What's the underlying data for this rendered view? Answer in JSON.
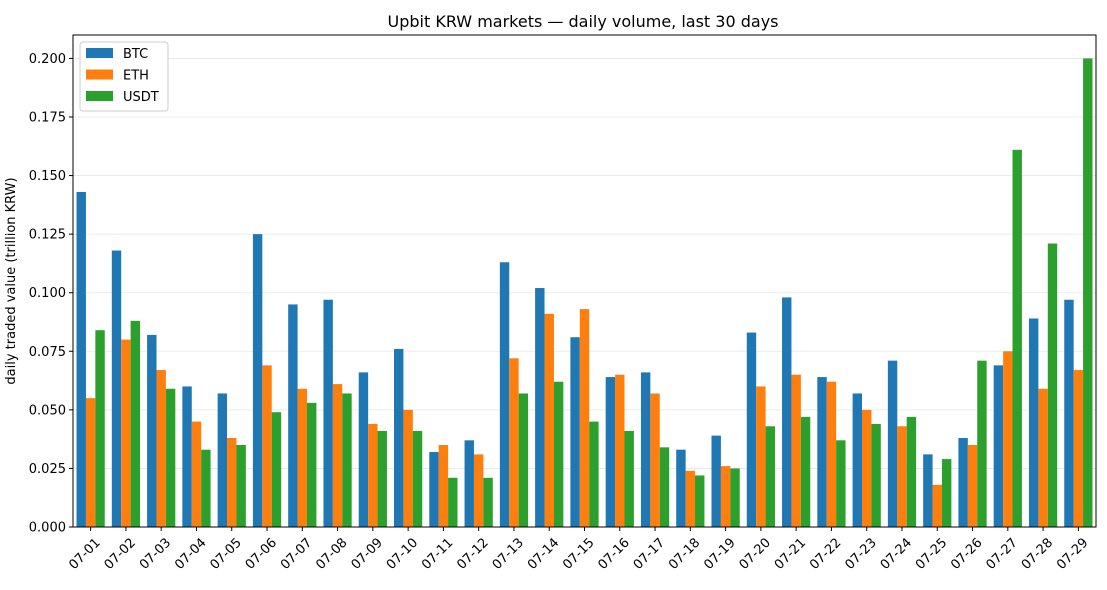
{
  "chart_data": {
    "type": "bar",
    "title": "Upbit KRW markets — daily volume, last 30 days",
    "xlabel": "",
    "ylabel": "daily traded value (trillion KRW)",
    "ylim": [
      0,
      0.21
    ],
    "yticks": [
      "0.000",
      "0.025",
      "0.050",
      "0.075",
      "0.100",
      "0.125",
      "0.150",
      "0.175",
      "0.200"
    ],
    "grid": "horizontal",
    "legend_position": "top-left",
    "categories": [
      "07-01",
      "07-02",
      "07-03",
      "07-04",
      "07-05",
      "07-06",
      "07-07",
      "07-08",
      "07-09",
      "07-10",
      "07-11",
      "07-12",
      "07-13",
      "07-14",
      "07-15",
      "07-16",
      "07-17",
      "07-18",
      "07-19",
      "07-20",
      "07-21",
      "07-22",
      "07-23",
      "07-24",
      "07-25",
      "07-26",
      "07-27",
      "07-28",
      "07-29"
    ],
    "series": [
      {
        "name": "BTC",
        "color": "#1f77b4",
        "values": [
          0.143,
          0.118,
          0.082,
          0.06,
          0.057,
          0.125,
          0.095,
          0.097,
          0.066,
          0.076,
          0.032,
          0.037,
          0.113,
          0.102,
          0.081,
          0.064,
          0.066,
          0.033,
          0.039,
          0.083,
          0.098,
          0.064,
          0.057,
          0.071,
          0.031,
          0.038,
          0.069,
          0.089,
          0.097
        ]
      },
      {
        "name": "ETH",
        "color": "#ff7f0e",
        "values": [
          0.055,
          0.08,
          0.067,
          0.045,
          0.038,
          0.069,
          0.059,
          0.061,
          0.044,
          0.05,
          0.035,
          0.031,
          0.072,
          0.091,
          0.093,
          0.065,
          0.057,
          0.024,
          0.026,
          0.06,
          0.065,
          0.062,
          0.05,
          0.043,
          0.018,
          0.035,
          0.075,
          0.059,
          0.067
        ]
      },
      {
        "name": "USDT",
        "color": "#2ca02c",
        "values": [
          0.084,
          0.088,
          0.059,
          0.033,
          0.035,
          0.049,
          0.053,
          0.057,
          0.041,
          0.041,
          0.021,
          0.021,
          0.057,
          0.062,
          0.045,
          0.041,
          0.034,
          0.022,
          0.025,
          0.043,
          0.047,
          0.037,
          0.044,
          0.047,
          0.029,
          0.071,
          0.161,
          0.121,
          0.2
        ]
      }
    ]
  }
}
